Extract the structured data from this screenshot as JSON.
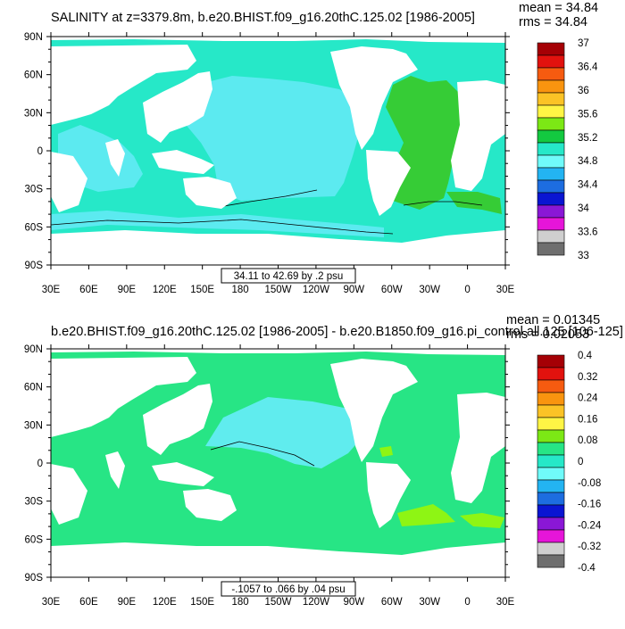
{
  "panels": [
    {
      "title": "SALINITY at z=3379.8m, b.e20.BHIST.f09_g16.20thC.125.02 [1986-2005]",
      "stats": {
        "mean": "mean = 34.84",
        "rms": "rms = 34.84"
      },
      "range_label": "34.11 to 42.69 by .2 psu",
      "ocean_color": "#26e8c8",
      "colorbar": {
        "labels": [
          "37",
          "36.4",
          "36",
          "35.6",
          "35.2",
          "34.8",
          "34.4",
          "34",
          "33.6",
          "33"
        ],
        "colors": [
          "#a50005",
          "#e2120e",
          "#f65b10",
          "#f9940f",
          "#fbc326",
          "#fff545",
          "#7ce815",
          "#13c940",
          "#26e8c8",
          "#70fbfa",
          "#23b4f2",
          "#1d6de0",
          "#0a15d2",
          "#8a17d6",
          "#e615d9",
          "#cfcfcf",
          "#6e6e6e"
        ]
      }
    },
    {
      "title": "b.e20.BHIST.f09_g16.20thC.125.02 [1986-2005] - b.e20.B1850.f09_g16.pi_control.all.125 [106-125]",
      "stats": {
        "mean": "mean = 0.01345",
        "rms": "rms = 0.02053"
      },
      "range_label": "-.1057 to .066 by .04 psu",
      "ocean_color": "#27e585",
      "colorbar": {
        "labels": [
          "0.4",
          "0.32",
          "0.24",
          "0.16",
          "0.08",
          "0",
          "-0.08",
          "-0.16",
          "-0.24",
          "-0.32",
          "-0.4"
        ],
        "colors": [
          "#a50005",
          "#e2120e",
          "#f65b10",
          "#f9940f",
          "#fbc326",
          "#fff545",
          "#7ce815",
          "#27e585",
          "#26e8c8",
          "#70fbfa",
          "#23b4f2",
          "#1d6de0",
          "#0a15d2",
          "#8a17d6",
          "#e615d9",
          "#cfcfcf",
          "#6e6e6e"
        ]
      }
    }
  ],
  "axes": {
    "lat_labels": [
      "90N",
      "60N",
      "30N",
      "0",
      "30S",
      "60S",
      "90S"
    ],
    "lon_labels": [
      "30E",
      "60E",
      "90E",
      "120E",
      "150E",
      "180",
      "150W",
      "120W",
      "90W",
      "60W",
      "30W",
      "0",
      "30E"
    ]
  },
  "colors": {
    "land": "#ffffff",
    "atlantic_top": "#36cc36",
    "pacific_top": "#5ceaf0",
    "pacific_bottom": "#60ecee",
    "lime_bottom": "#8ef514"
  }
}
